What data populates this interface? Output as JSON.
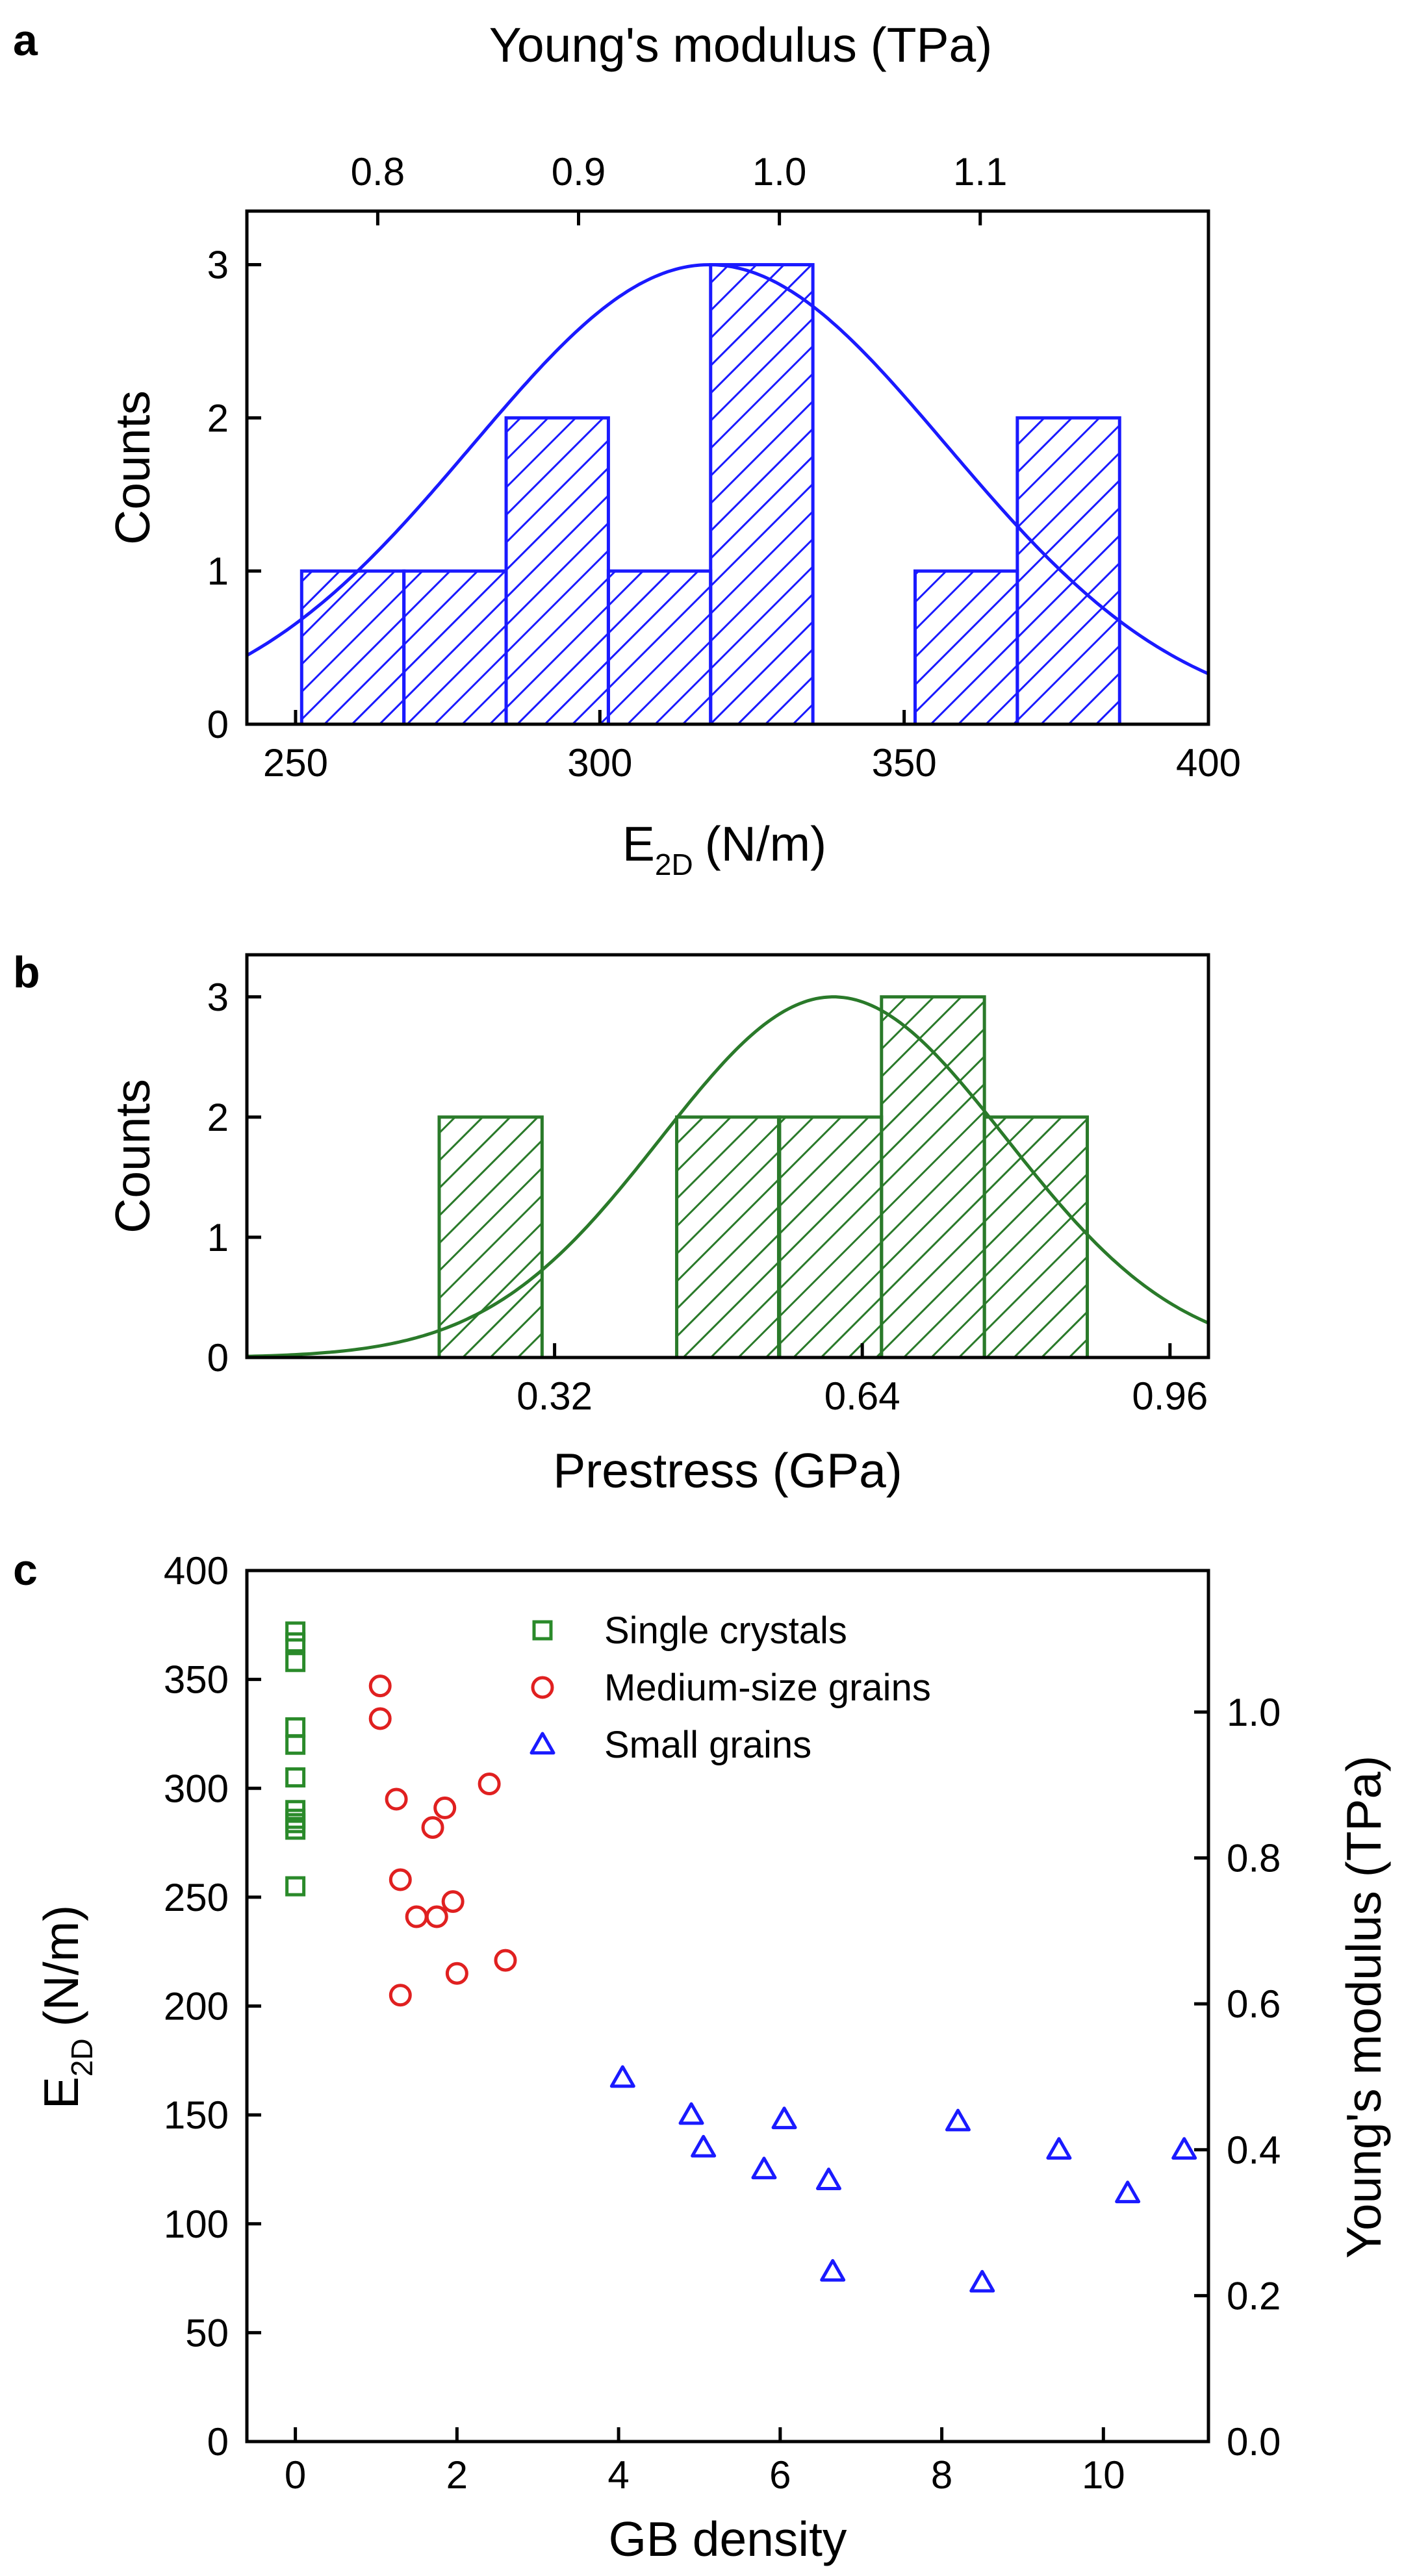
{
  "chart_data": [
    {
      "panel": "a",
      "type": "bar",
      "subtype": "histogram with gaussian fit",
      "xlabel": "E",
      "xlabel_sub": "2D",
      "xlabel_unit": "(N/m)",
      "ylabel": "Counts",
      "top_axis_label": "Young's modulus (TPa)",
      "xlim": [
        242,
        400
      ],
      "ylim": [
        0,
        3.35
      ],
      "x_ticks": [
        "250",
        "300",
        "350",
        "400"
      ],
      "x_tick_values": [
        250,
        300,
        350,
        400
      ],
      "y_ticks": [
        "0",
        "1",
        "2",
        "3"
      ],
      "y_tick_values": [
        0,
        1,
        2,
        3
      ],
      "top_ticks": [
        "0.8",
        "0.9",
        "1.0",
        "1.1"
      ],
      "top_tick_positions": [
        263.5,
        296.5,
        329.5,
        362.5
      ],
      "bin_width": 16.8,
      "bins": [
        {
          "left": 251.0,
          "count": 1
        },
        {
          "left": 267.8,
          "count": 1
        },
        {
          "left": 284.6,
          "count": 2
        },
        {
          "left": 301.4,
          "count": 1
        },
        {
          "left": 318.2,
          "count": 3
        },
        {
          "left": 351.8,
          "count": 1
        },
        {
          "left": 368.6,
          "count": 2
        }
      ],
      "fit": {
        "mean": 318,
        "sigma": 39,
        "amplitude": 3
      },
      "color": "#1a1aff"
    },
    {
      "panel": "b",
      "type": "bar",
      "subtype": "histogram with gaussian fit",
      "xlabel": "Prestress (GPa)",
      "ylabel": "Counts",
      "xlim": [
        0.0,
        1.0
      ],
      "ylim": [
        0,
        3.35
      ],
      "x_ticks": [
        "0.32",
        "0.64",
        "0.96"
      ],
      "x_tick_values": [
        0.32,
        0.64,
        0.96
      ],
      "y_ticks": [
        "0",
        "1",
        "2",
        "3"
      ],
      "y_tick_values": [
        0,
        1,
        2,
        3
      ],
      "bin_width": 0.107,
      "bins": [
        {
          "left": 0.2,
          "count": 2
        },
        {
          "left": 0.447,
          "count": 2
        },
        {
          "left": 0.553,
          "count": 2
        },
        {
          "left": 0.66,
          "count": 3
        },
        {
          "left": 0.767,
          "count": 2
        }
      ],
      "fit": {
        "mean": 0.61,
        "sigma": 0.18,
        "amplitude": 3
      },
      "color": "#2a7a2a"
    },
    {
      "panel": "c",
      "type": "scatter",
      "xlabel": "GB density",
      "ylabel": "E",
      "ylabel_sub": "2D",
      "ylabel_unit": "(N/m)",
      "right_ylabel": "Young's modulus (TPa)",
      "xlim": [
        -0.6,
        11.3
      ],
      "ylim": [
        0,
        400
      ],
      "x_ticks": [
        "0",
        "2",
        "4",
        "6",
        "8",
        "10"
      ],
      "x_tick_values": [
        0,
        2,
        4,
        6,
        8,
        10
      ],
      "y_ticks": [
        "0",
        "50",
        "100",
        "150",
        "200",
        "250",
        "300",
        "350",
        "400"
      ],
      "y_tick_values": [
        0,
        50,
        100,
        150,
        200,
        250,
        300,
        350,
        400
      ],
      "right_ticks": [
        "0.0",
        "0.2",
        "0.4",
        "0.6",
        "0.8",
        "1.0"
      ],
      "right_tick_positions": [
        0,
        67,
        134,
        201,
        268,
        335
      ],
      "legend_position": "top-right",
      "series": [
        {
          "name": "Single crystals",
          "marker": "square",
          "color": "#2a8a2a",
          "points": [
            [
              0,
              372
            ],
            [
              0,
              367
            ],
            [
              0,
              358
            ],
            [
              0,
              328
            ],
            [
              0,
              320
            ],
            [
              0,
              305
            ],
            [
              0,
              290
            ],
            [
              0,
              286
            ],
            [
              0,
              284
            ],
            [
              0,
              281
            ],
            [
              0,
              255
            ]
          ]
        },
        {
          "name": "Medium-size grains",
          "marker": "circle",
          "color": "#e02020",
          "points": [
            [
              1.05,
              347
            ],
            [
              1.05,
              332
            ],
            [
              1.25,
              295
            ],
            [
              1.85,
              291
            ],
            [
              2.4,
              302
            ],
            [
              1.7,
              282
            ],
            [
              1.3,
              258
            ],
            [
              1.95,
              248
            ],
            [
              1.5,
              241
            ],
            [
              1.75,
              241
            ],
            [
              2.0,
              215
            ],
            [
              2.6,
              221
            ],
            [
              1.3,
              205
            ]
          ]
        },
        {
          "name": "Small grains",
          "marker": "triangle",
          "color": "#1a1aff",
          "points": [
            [
              4.05,
              167
            ],
            [
              4.9,
              150
            ],
            [
              5.05,
              135
            ],
            [
              6.05,
              148
            ],
            [
              5.8,
              125
            ],
            [
              6.6,
              120
            ],
            [
              6.65,
              78
            ],
            [
              8.2,
              147
            ],
            [
              8.5,
              73
            ],
            [
              9.45,
              134
            ],
            [
              10.3,
              114
            ],
            [
              11.0,
              134
            ]
          ]
        }
      ]
    }
  ]
}
